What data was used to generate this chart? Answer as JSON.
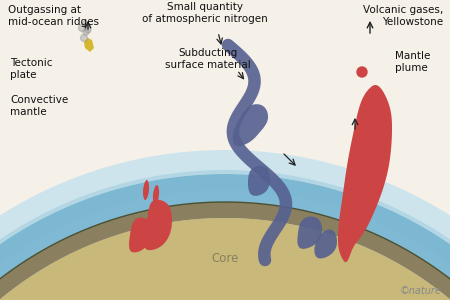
{
  "bg_color": "#f5f0e8",
  "labels": {
    "outgassing": "Outgassing at\nmid-ocean ridges",
    "volcanic": "Volcanic gases,\nYellowstone",
    "nitrogen": "Small quantity\nof atmospheric nitrogen",
    "subducting": "Subducting\nsurface material",
    "tectonic": "Tectonic\nplate",
    "convective": "Convective\nmantle",
    "mantle_plume": "Mantle\nplume",
    "core": "Core",
    "nature": "©nature"
  },
  "colors": {
    "atmosphere_light": "#b8dff0",
    "atmosphere_dark": "#7ab8d4",
    "ocean": "#6ab0d0",
    "crust": "#8a8060",
    "mantle": "#c8b87a",
    "core_outer": "#e8e0b0",
    "core_inner": "#f5f0d8",
    "red_plume": "#cc4444",
    "blue_subduct": "#556090",
    "yellow_vent": "#d4b830",
    "smoke": "#909090",
    "arrow": "#222222",
    "text": "#111111",
    "nature_text": "#888888"
  }
}
